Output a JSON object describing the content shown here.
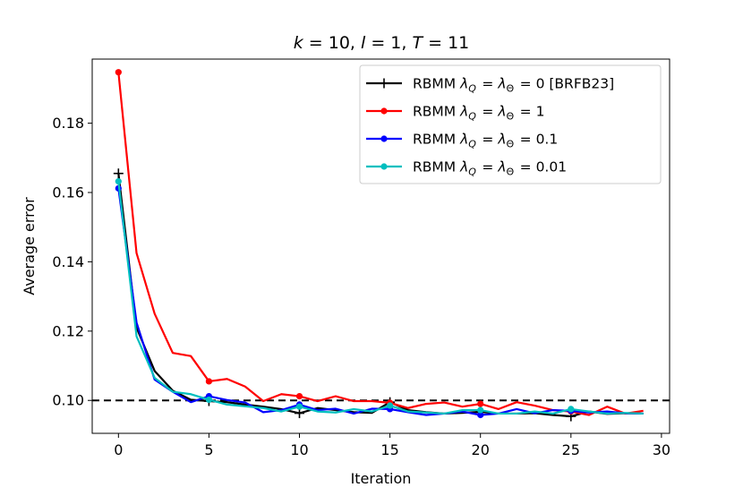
{
  "chart_data": {
    "type": "line",
    "title": "k =  10, l =  1, T = 11",
    "xlabel": "Iteration",
    "ylabel": "Average error",
    "xlim": [
      -1.45,
      30.45
    ],
    "ylim": [
      0.0905,
      0.1985
    ],
    "xticks": [
      0,
      5,
      10,
      15,
      20,
      25,
      30
    ],
    "yticks": [
      0.1,
      0.12,
      0.14,
      0.16,
      0.18
    ],
    "ytick_labels": [
      "0.10",
      "0.12",
      "0.14",
      "0.16",
      "0.18"
    ],
    "reference_line": {
      "y": 0.1,
      "style": "dashed",
      "color": "#000000"
    },
    "legend_position": "top-right",
    "x": [
      0,
      1,
      2,
      3,
      4,
      5,
      6,
      7,
      8,
      9,
      10,
      11,
      12,
      13,
      14,
      15,
      16,
      17,
      18,
      19,
      20,
      21,
      22,
      23,
      24,
      25,
      26,
      27,
      28,
      29
    ],
    "series": [
      {
        "name": "RBMM λ_Q = λ_Θ = 0 [BRFB23]",
        "color": "#000000",
        "marker": "plus",
        "values": [
          0.1655,
          0.121,
          0.1085,
          0.1028,
          0.1002,
          0.0998,
          0.0995,
          0.0988,
          0.0982,
          0.0975,
          0.0963,
          0.0978,
          0.0972,
          0.0966,
          0.0964,
          0.0995,
          0.0972,
          0.0966,
          0.0962,
          0.0964,
          0.0967,
          0.0962,
          0.0962,
          0.0963,
          0.0958,
          0.0954,
          0.0968,
          0.0961,
          0.0963,
          0.0962
        ]
      },
      {
        "name": "RBMM λ_Q = λ_Θ = 1",
        "color": "#ff0000",
        "marker": "circle",
        "values": [
          0.1947,
          0.1425,
          0.125,
          0.1137,
          0.1128,
          0.1055,
          0.1062,
          0.104,
          0.0998,
          0.1018,
          0.1012,
          0.0998,
          0.1012,
          0.0998,
          0.0998,
          0.0993,
          0.0978,
          0.099,
          0.0994,
          0.0982,
          0.099,
          0.0975,
          0.0995,
          0.0985,
          0.0972,
          0.0968,
          0.0958,
          0.0982,
          0.0962,
          0.097
        ]
      },
      {
        "name": "RBMM λ_Q = λ_Θ = 0.1",
        "color": "#0000ff",
        "marker": "circle",
        "values": [
          0.1612,
          0.1225,
          0.106,
          0.1025,
          0.0995,
          0.1012,
          0.1001,
          0.0994,
          0.0966,
          0.0972,
          0.0988,
          0.0972,
          0.0976,
          0.0962,
          0.0976,
          0.0975,
          0.0966,
          0.0958,
          0.0962,
          0.0968,
          0.0958,
          0.0962,
          0.0975,
          0.0963,
          0.0972,
          0.097,
          0.0965,
          0.0968,
          0.0963,
          0.0962
        ]
      },
      {
        "name": "RBMM λ_Q = λ_Θ = 0.01",
        "color": "#00bfbf",
        "marker": "circle",
        "values": [
          0.1632,
          0.1185,
          0.1065,
          0.1025,
          0.1018,
          0.1002,
          0.0988,
          0.0983,
          0.0978,
          0.0968,
          0.0982,
          0.0968,
          0.0965,
          0.0975,
          0.0968,
          0.0985,
          0.0968,
          0.0965,
          0.0962,
          0.0972,
          0.0972,
          0.0962,
          0.0962,
          0.0968,
          0.0962,
          0.0975,
          0.0968,
          0.0962,
          0.0964,
          0.0962
        ]
      }
    ]
  }
}
